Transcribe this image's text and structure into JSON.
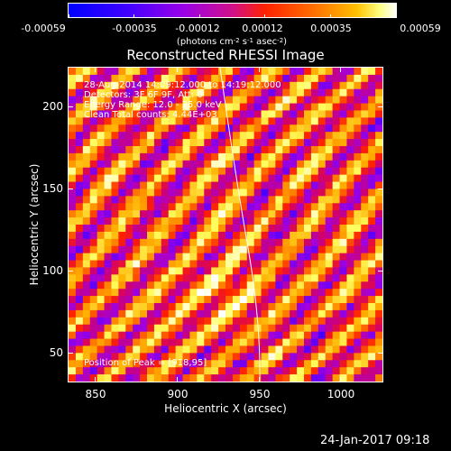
{
  "colorbar": {
    "tick_labels": [
      "-0.00059",
      "-0.00035",
      "-0.00012",
      "0.00012",
      "0.00035",
      "0.00059"
    ],
    "units_prefix": "(photons cm",
    "units_sup1": "-2",
    "units_mid1": " s",
    "units_sup2": "-1",
    "units_mid2": " asec",
    "units_sup3": "-2",
    "units_suffix": ")",
    "colormap_colors": [
      "#0000ff",
      "#5a00ff",
      "#a000e0",
      "#d00070",
      "#ff2000",
      "#ff6a00",
      "#ffb000",
      "#ffff60",
      "#ffffff"
    ]
  },
  "plot": {
    "title": "Reconstructed RHESSI Image",
    "xlabel": "Heliocentric X (arcsec)",
    "ylabel": "Heliocentric Y (arcsec)",
    "xticks": [
      "850",
      "900",
      "950",
      "1000"
    ],
    "yticks": [
      "200",
      "150",
      "100",
      "50"
    ],
    "xlim": [
      833,
      1027
    ],
    "ylim": [
      34,
      228
    ]
  },
  "annotations": {
    "time_range": "28-Aug-2014 14:09:12.000 to 14:19:12.000",
    "detectors": "Detectors: 3F 6F 9F, Att: 0",
    "energy_range": "Energy Range: 12.0 - 25.0 keV",
    "method": "Clean    Total counts: 4.44E+03",
    "peak": "Position of Peak = [918,95]"
  },
  "timestamp": "24-Jan-2017 09:18"
}
